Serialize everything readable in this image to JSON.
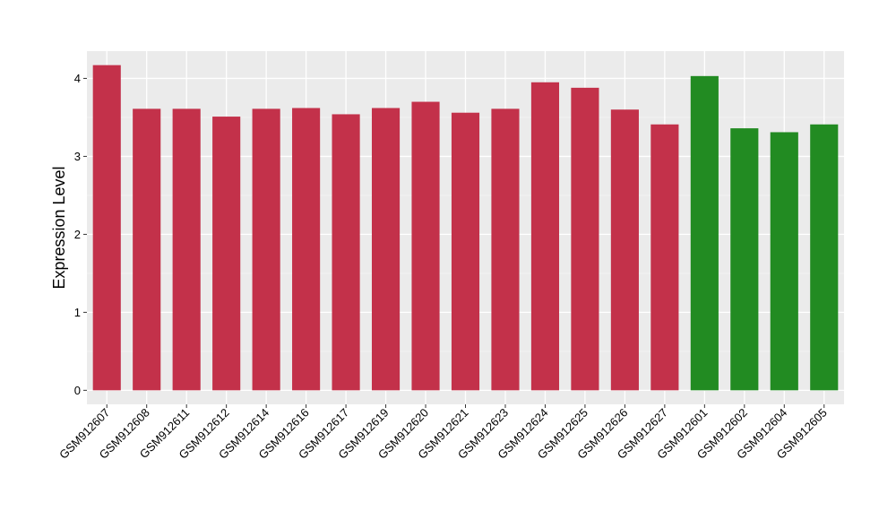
{
  "chart_data": {
    "type": "bar",
    "title": "",
    "xlabel": "",
    "ylabel": "Expression Level",
    "ylim": [
      -0.18,
      4.35
    ],
    "y_ticks": [
      0,
      1,
      2,
      3,
      4
    ],
    "grid": true,
    "panel_background": "#ebebeb",
    "categories": [
      "GSM912607",
      "GSM912608",
      "GSM912611",
      "GSM912612",
      "GSM912614",
      "GSM912616",
      "GSM912617",
      "GSM912619",
      "GSM912620",
      "GSM912621",
      "GSM912623",
      "GSM912624",
      "GSM912625",
      "GSM912626",
      "GSM912627",
      "GSM912601",
      "GSM912602",
      "GSM912604",
      "GSM912605"
    ],
    "values": [
      4.17,
      3.61,
      3.61,
      3.51,
      3.61,
      3.62,
      3.54,
      3.62,
      3.7,
      3.56,
      3.61,
      3.95,
      3.88,
      3.6,
      3.41,
      4.03,
      3.36,
      3.31,
      3.41
    ],
    "colors": [
      "#c3314a",
      "#c3314a",
      "#c3314a",
      "#c3314a",
      "#c3314a",
      "#c3314a",
      "#c3314a",
      "#c3314a",
      "#c3314a",
      "#c3314a",
      "#c3314a",
      "#c3314a",
      "#c3314a",
      "#c3314a",
      "#c3314a",
      "#228b22",
      "#228b22",
      "#228b22",
      "#228b22"
    ]
  }
}
